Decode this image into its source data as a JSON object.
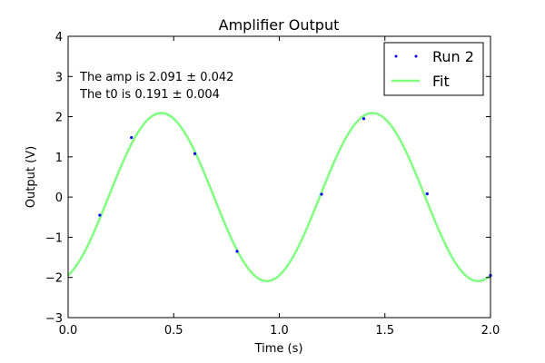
{
  "chart_data": {
    "type": "line",
    "title": "Amplifier Output",
    "xlabel": "Time (s)",
    "ylabel": "Output (V)",
    "xlim": [
      0.0,
      2.0
    ],
    "ylim": [
      -3,
      4
    ],
    "x_ticks": [
      0.0,
      0.5,
      1.0,
      1.5,
      2.0
    ],
    "x_tick_labels": [
      "0.0",
      "0.5",
      "1.0",
      "1.5",
      "2.0"
    ],
    "y_ticks": [
      -3,
      -2,
      -1,
      0,
      1,
      2,
      3,
      4
    ],
    "y_tick_labels": [
      "−3",
      "−2",
      "−1",
      "0",
      "1",
      "2",
      "3",
      "4"
    ],
    "grid": false,
    "legend_position": "top-right",
    "annotations": [
      "The amp is 2.091 ± 0.042",
      "The t0 is 0.191 ± 0.004"
    ],
    "fit_params": {
      "amp": 2.091,
      "t0": 0.191,
      "period": 1.0
    },
    "series": [
      {
        "name": "Run 2",
        "style": "points",
        "color": "#0000ff",
        "x": [
          0.15,
          0.3,
          0.6,
          0.8,
          1.2,
          1.4,
          1.7,
          2.0
        ],
        "y": [
          -0.45,
          1.48,
          1.08,
          -1.35,
          0.07,
          1.95,
          0.08,
          -1.95
        ]
      },
      {
        "name": "Fit",
        "style": "line",
        "color": "#80ff80"
      }
    ]
  }
}
